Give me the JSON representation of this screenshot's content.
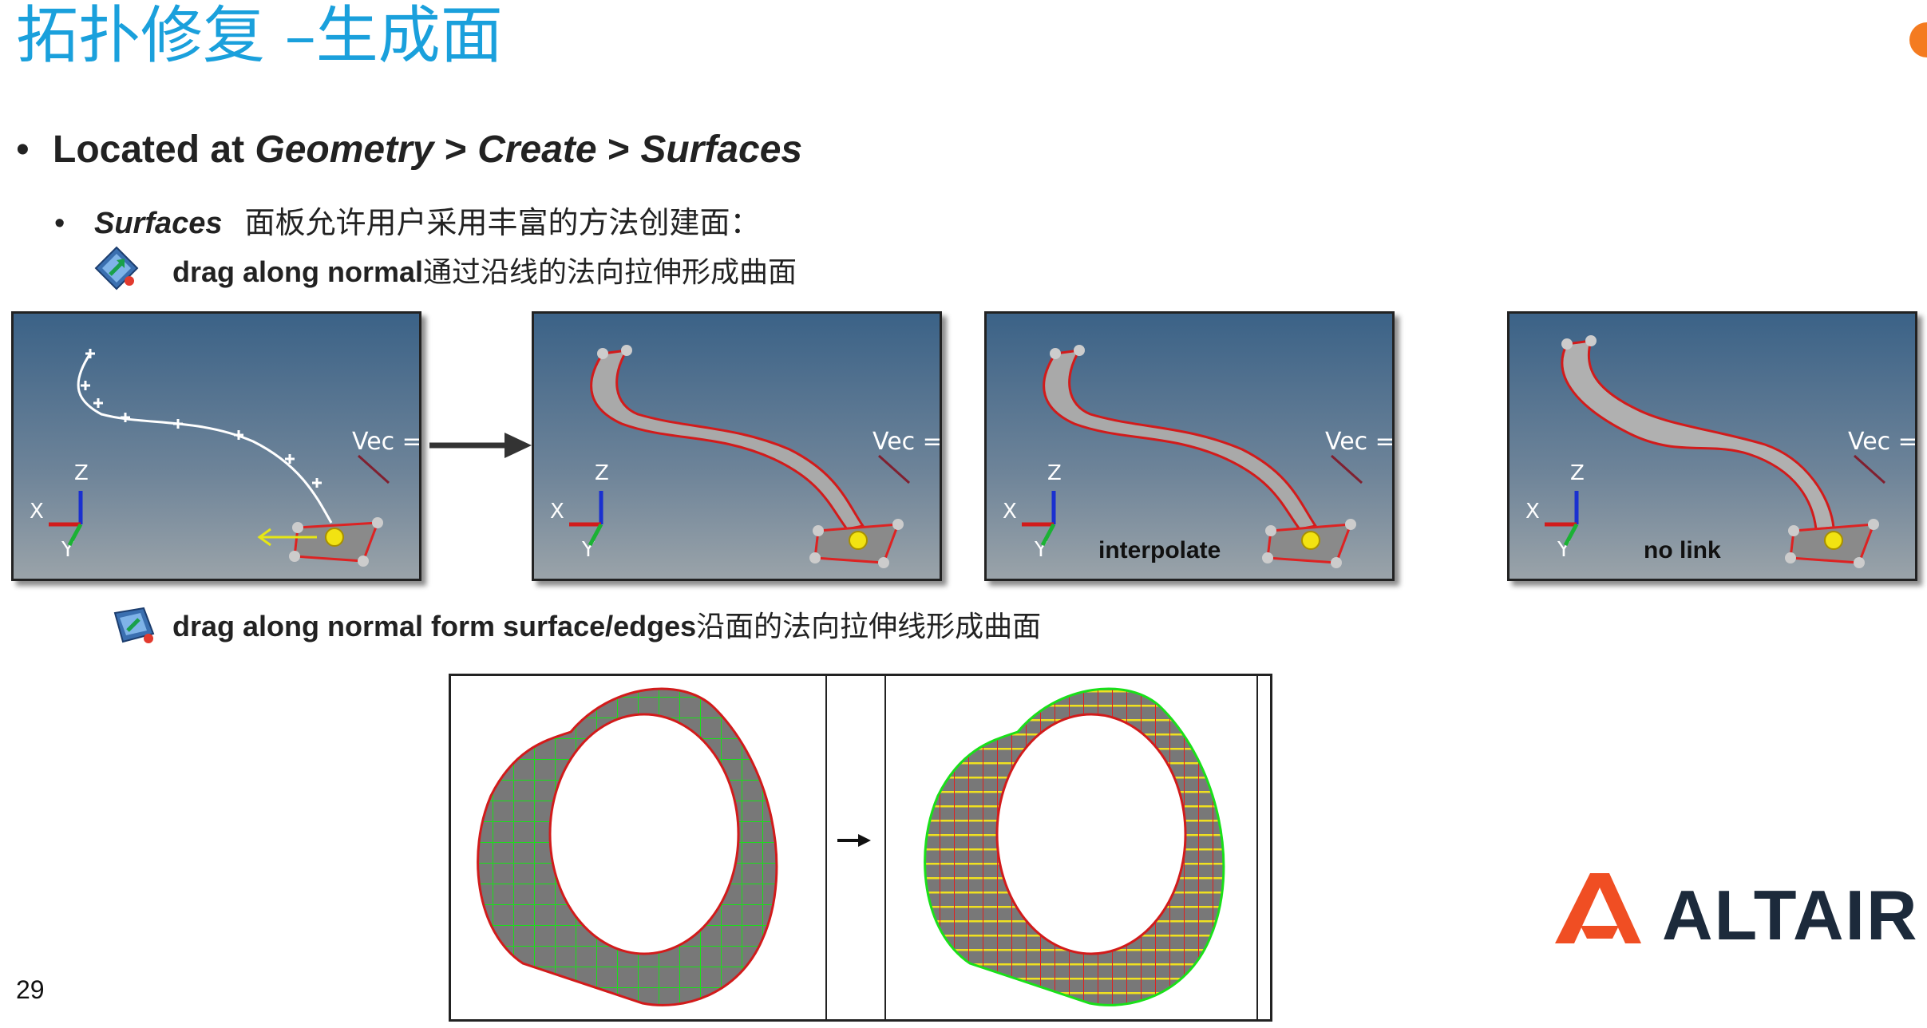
{
  "title": "拓扑修复 –生成面",
  "bullet1": {
    "marker": "•",
    "prefix": "Located at ",
    "path1": "Geometry",
    "sep1": " > ",
    "path2": "Create",
    "sep2": " > ",
    "path3": "Surfaces"
  },
  "bullet2": {
    "marker": "•",
    "em": "Surfaces",
    "text": "面板允许用户采用丰富的方法创建面："
  },
  "item1": {
    "bold": "drag along normal",
    "text": "通过沿线的法向拉伸形成曲面",
    "icon": "drag-normal-icon"
  },
  "item2": {
    "bold": "drag along normal form surface/edges",
    "text": "沿面的法向拉伸线形成曲面",
    "icon": "drag-surface-icon"
  },
  "panels": [
    {
      "vec": "Vec =",
      "caption": ""
    },
    {
      "vec": "Vec =",
      "caption": ""
    },
    {
      "vec": "Vec =",
      "caption": "interpolate"
    },
    {
      "vec": "Vec =",
      "caption": "no link"
    }
  ],
  "axis": {
    "x": "X",
    "y": "Y",
    "z": "Z"
  },
  "page_number": "29",
  "logo": {
    "text": "ALTAIR",
    "color": "#f04e23"
  },
  "colors": {
    "title": "#1aa0dc",
    "accent": "#f47b20"
  }
}
